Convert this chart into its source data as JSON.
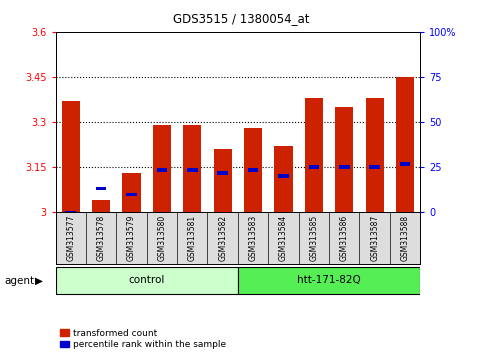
{
  "title": "GDS3515 / 1380054_at",
  "samples": [
    "GSM313577",
    "GSM313578",
    "GSM313579",
    "GSM313580",
    "GSM313581",
    "GSM313582",
    "GSM313583",
    "GSM313584",
    "GSM313585",
    "GSM313586",
    "GSM313587",
    "GSM313588"
  ],
  "red_values": [
    3.37,
    3.04,
    3.13,
    3.29,
    3.29,
    3.21,
    3.28,
    3.22,
    3.38,
    3.35,
    3.38,
    3.45
  ],
  "blue_values": [
    3.0,
    3.08,
    3.06,
    3.14,
    3.14,
    3.13,
    3.14,
    3.12,
    3.15,
    3.15,
    3.15,
    3.16
  ],
  "ymin": 3.0,
  "ymax": 3.6,
  "yticks": [
    3.0,
    3.15,
    3.3,
    3.45,
    3.6
  ],
  "ytick_labels": [
    "3",
    "3.15",
    "3.3",
    "3.45",
    "3.6"
  ],
  "right_yticks": [
    0,
    25,
    50,
    75,
    100
  ],
  "right_ytick_labels": [
    "0",
    "25",
    "50",
    "75",
    "100%"
  ],
  "gridlines": [
    3.15,
    3.3,
    3.45
  ],
  "control_label": "control",
  "treatment_label": "htt-171-82Q",
  "agent_label": "agent",
  "legend_red": "transformed count",
  "legend_blue": "percentile rank within the sample",
  "bar_color_red": "#cc2200",
  "bar_color_blue": "#0000cc",
  "control_bg": "#ccffcc",
  "treatment_bg": "#55ee55",
  "xlabel_bg": "#dddddd",
  "bar_width": 0.6,
  "blue_bar_width": 0.35,
  "blue_bar_height": 0.012
}
